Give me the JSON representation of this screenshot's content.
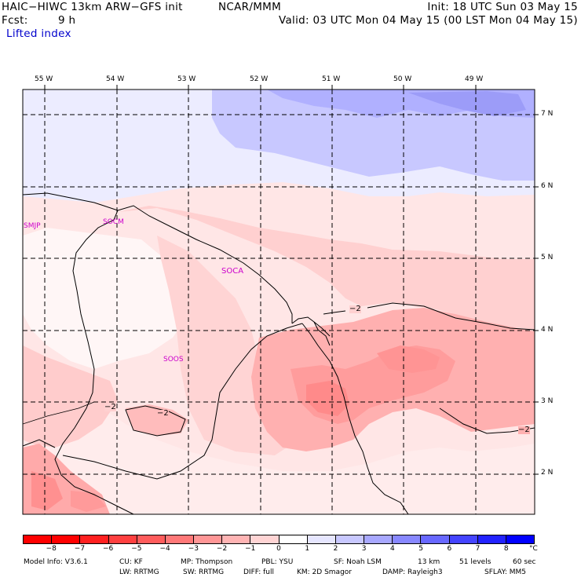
{
  "header": {
    "title": "HAIC−HIWC 13km ARW−GFS init",
    "org": "NCAR/MMM",
    "init": "Init: 18 UTC Sun 03 May 15",
    "fcst_label": "Fcst:",
    "fcst_value": "9 h",
    "valid": "Valid: 03 UTC Mon 04 May 15 (00 LST Mon 04 May 15)",
    "field": "Lifted index"
  },
  "map": {
    "lon_labels": [
      "55 W",
      "54 W",
      "53 W",
      "52 W",
      "51 W",
      "50 W",
      "49 W"
    ],
    "lat_labels": [
      "7 N",
      "6 N",
      "5 N",
      "4 N",
      "3 N",
      "2 N"
    ],
    "stations": [
      "SMJP",
      "SOCM",
      "SOCA",
      "SOOS"
    ],
    "contour_labels": [
      "−2",
      "−2",
      "−2",
      "−2"
    ]
  },
  "colorbar": {
    "labels": [
      "−8",
      "−7",
      "−6",
      "−5",
      "−4",
      "−3",
      "−2",
      "−1",
      "0",
      "1",
      "2",
      "3",
      "4",
      "5",
      "6",
      "7",
      "8"
    ],
    "unit": "°C",
    "colors": [
      "#ff0000",
      "#ff2020",
      "#ff4040",
      "#ff5c5c",
      "#ff7878",
      "#ff9696",
      "#ffb4b4",
      "#ffd4d4",
      "#ffffff",
      "#e6e6ff",
      "#c8c8ff",
      "#a8a8ff",
      "#8888ff",
      "#6868ff",
      "#4444ff",
      "#2222ff",
      "#0000ff"
    ]
  },
  "footer": {
    "model_info": "Model Info: V3.6.1",
    "cu": "CU: KF",
    "mp": "MP: Thompson",
    "pbl": "PBL: YSU",
    "sf": "SF: Noah LSM",
    "res": "13 km",
    "levels": "51 levels",
    "dt": "60 sec",
    "lw": "LW: RRTMG",
    "sw": "SW: RRTMG",
    "diff": "DIFF: full",
    "km": "KM: 2D Smagor",
    "damp": "DAMP: Rayleigh3",
    "sflay": "SFLAY: MM5"
  }
}
